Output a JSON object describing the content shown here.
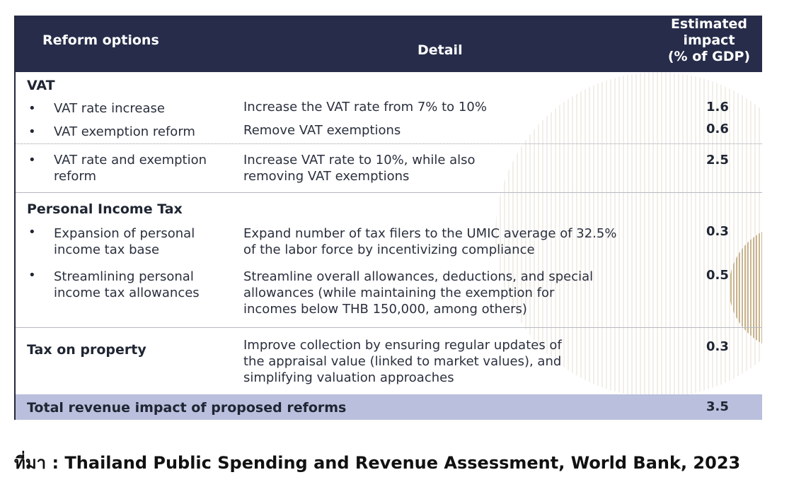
{
  "header": {
    "col_reform": "Reform options",
    "col_detail": "Detail",
    "col_impact_lines": [
      "Estimated",
      "impact",
      "(% of GDP)"
    ]
  },
  "sections": {
    "vat": {
      "title": "VAT",
      "rows": [
        {
          "option": "VAT rate increase",
          "detail": "Increase the VAT rate from 7% to 10%",
          "impact": "1.6"
        },
        {
          "option": "VAT exemption reform",
          "detail": "Remove VAT exemptions",
          "impact": "0.6"
        },
        {
          "option_lines": [
            "VAT rate and exemption",
            "reform"
          ],
          "detail_lines": [
            "Increase VAT rate to 10%, while also",
            "removing VAT exemptions"
          ],
          "impact": "2.5"
        }
      ]
    },
    "pit": {
      "title": "Personal Income Tax",
      "rows": [
        {
          "option_lines": [
            "Expansion of personal",
            "income tax base"
          ],
          "detail_lines": [
            "Expand number of tax filers to the UMIC average of 32.5%",
            "of the labor force by incentivizing compliance"
          ],
          "impact": "0.3"
        },
        {
          "option_lines": [
            "Streamlining personal",
            "income tax allowances"
          ],
          "detail_lines": [
            "Streamline overall allowances, deductions, and special",
            "allowances (while maintaining the exemption for",
            "incomes below THB 150,000, among others)"
          ],
          "impact": "0.5"
        }
      ]
    },
    "property": {
      "title": "Tax on property",
      "detail_lines": [
        "Improve collection by ensuring regular updates of",
        "the appraisal value (linked to market values), and",
        "simplifying valuation approaches"
      ],
      "impact": "0.3"
    }
  },
  "total": {
    "label": "Total revenue impact of proposed reforms",
    "impact": "3.5"
  },
  "source": "ที่มา : Thailand Public Spending and Revenue Assessment, World Bank, 2023",
  "colors": {
    "header_bg": "#262c4a",
    "total_bg": "#b9bfdc",
    "decor_tan": "#c9b48e"
  }
}
